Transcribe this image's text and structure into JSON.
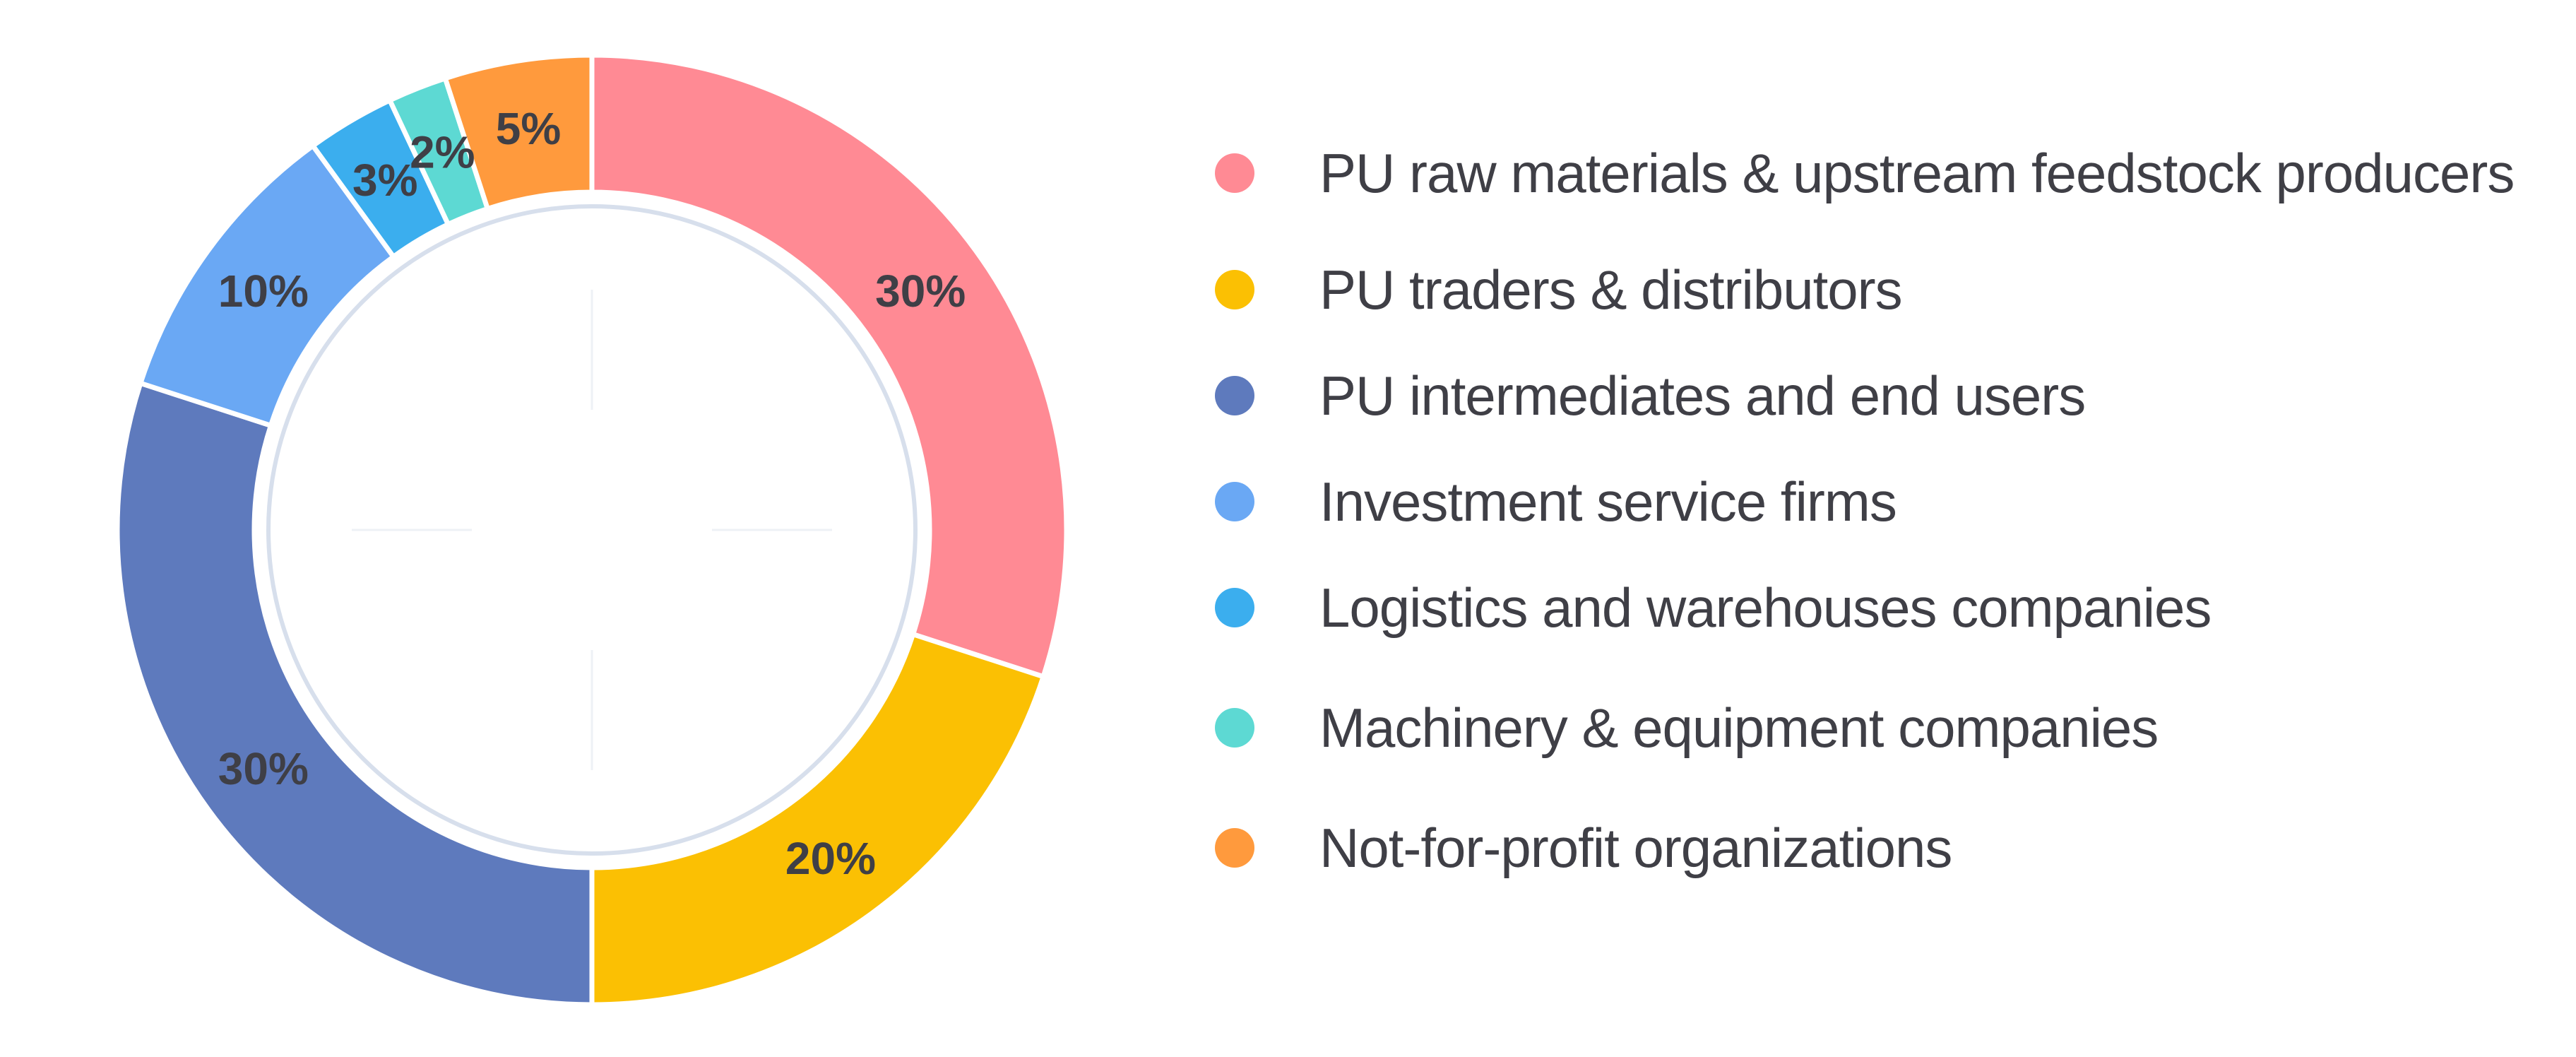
{
  "chart_data": {
    "type": "pie",
    "variant": "donut",
    "legend_position": "right",
    "slices": [
      {
        "name": "PU raw materials & upstream feedstock producers",
        "value": 30,
        "label": "30%",
        "color": "#FF8A94"
      },
      {
        "name": "PU traders & distributors",
        "value": 20,
        "label": "20%",
        "color": "#FBC003"
      },
      {
        "name": "PU intermediates and end users",
        "value": 30,
        "label": "30%",
        "color": "#5E7ABD"
      },
      {
        "name": "Investment service firms",
        "value": 10,
        "label": "10%",
        "color": "#6AA8F4"
      },
      {
        "name": "Logistics and warehouses companies",
        "value": 3,
        "label": "3%",
        "color": "#3BAEEE"
      },
      {
        "name": "Machinery & equipment companies",
        "value": 2,
        "label": "2%",
        "color": "#5DD9D3"
      },
      {
        "name": "Not-for-profit organizations",
        "value": 5,
        "label": "5%",
        "color": "#FF9A3D"
      }
    ]
  }
}
